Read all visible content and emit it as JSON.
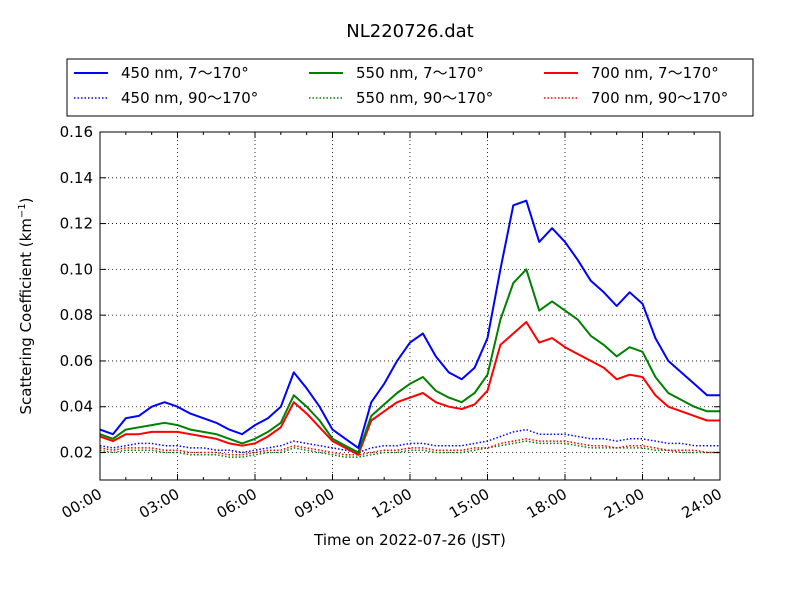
{
  "chart_data": {
    "type": "line",
    "title": "NL220726.dat",
    "xlabel": "Time on 2022-07-26 (JST)",
    "ylabel_main": "Scattering Coefficient (km",
    "ylabel_exp": "−1",
    "ylabel_close": ")",
    "xlim_hours": [
      0,
      24
    ],
    "ylim": [
      0.008,
      0.16
    ],
    "grid": true,
    "legend_placement": "top",
    "x_ticks": [
      {
        "hour": 0,
        "label": "00:00"
      },
      {
        "hour": 3,
        "label": "03:00"
      },
      {
        "hour": 6,
        "label": "06:00"
      },
      {
        "hour": 9,
        "label": "09:00"
      },
      {
        "hour": 12,
        "label": "12:00"
      },
      {
        "hour": 15,
        "label": "15:00"
      },
      {
        "hour": 18,
        "label": "18:00"
      },
      {
        "hour": 21,
        "label": "21:00"
      },
      {
        "hour": 24,
        "label": "24:00"
      }
    ],
    "y_ticks": [
      {
        "value": 0.02,
        "label": "0.02"
      },
      {
        "value": 0.04,
        "label": "0.04"
      },
      {
        "value": 0.06,
        "label": "0.06"
      },
      {
        "value": 0.08,
        "label": "0.08"
      },
      {
        "value": 0.1,
        "label": "0.10"
      },
      {
        "value": 0.12,
        "label": "0.12"
      },
      {
        "value": 0.14,
        "label": "0.14"
      },
      {
        "value": 0.16,
        "label": "0.16"
      }
    ],
    "x_hours": [
      0,
      0.5,
      1,
      1.5,
      2,
      2.5,
      3,
      3.5,
      4,
      4.5,
      5,
      5.5,
      6,
      6.5,
      7,
      7.5,
      8,
      8.5,
      9,
      9.5,
      10,
      10.5,
      11,
      11.5,
      12,
      12.5,
      13,
      13.5,
      14,
      14.5,
      15,
      15.5,
      16,
      16.5,
      17,
      17.5,
      18,
      18.5,
      19,
      19.5,
      20,
      20.5,
      21,
      21.5,
      22,
      22.5,
      23,
      23.5,
      24
    ],
    "series": [
      {
        "name": "450 nm, 7～170°",
        "color": "#0000ff",
        "style": "solid",
        "values": [
          0.03,
          0.028,
          0.035,
          0.036,
          0.04,
          0.042,
          0.04,
          0.037,
          0.035,
          0.033,
          0.03,
          0.028,
          0.032,
          0.035,
          0.04,
          0.055,
          0.048,
          0.04,
          0.03,
          0.026,
          0.022,
          0.042,
          0.05,
          0.06,
          0.068,
          0.072,
          0.062,
          0.055,
          0.052,
          0.057,
          0.07,
          0.1,
          0.128,
          0.13,
          0.112,
          0.118,
          0.112,
          0.104,
          0.095,
          0.09,
          0.084,
          0.09,
          0.085,
          0.07,
          0.06,
          0.055,
          0.05,
          0.045,
          0.045
        ]
      },
      {
        "name": "450 nm, 90～170°",
        "color": "#0000ff",
        "style": "dotted",
        "values": [
          0.023,
          0.022,
          0.023,
          0.024,
          0.024,
          0.023,
          0.023,
          0.022,
          0.022,
          0.021,
          0.021,
          0.02,
          0.021,
          0.022,
          0.023,
          0.025,
          0.024,
          0.023,
          0.022,
          0.021,
          0.02,
          0.022,
          0.023,
          0.023,
          0.024,
          0.024,
          0.023,
          0.023,
          0.023,
          0.024,
          0.025,
          0.027,
          0.029,
          0.03,
          0.028,
          0.028,
          0.028,
          0.027,
          0.026,
          0.026,
          0.025,
          0.026,
          0.026,
          0.025,
          0.024,
          0.024,
          0.023,
          0.023,
          0.023
        ]
      },
      {
        "name": "550 nm, 7～170°",
        "color": "#008000",
        "style": "solid",
        "values": [
          0.028,
          0.026,
          0.03,
          0.031,
          0.032,
          0.033,
          0.032,
          0.03,
          0.029,
          0.028,
          0.026,
          0.024,
          0.026,
          0.029,
          0.033,
          0.045,
          0.04,
          0.034,
          0.026,
          0.023,
          0.02,
          0.036,
          0.041,
          0.046,
          0.05,
          0.053,
          0.047,
          0.044,
          0.042,
          0.046,
          0.054,
          0.078,
          0.094,
          0.1,
          0.082,
          0.086,
          0.082,
          0.078,
          0.071,
          0.067,
          0.062,
          0.066,
          0.064,
          0.053,
          0.046,
          0.043,
          0.04,
          0.038,
          0.038
        ]
      },
      {
        "name": "550 nm, 90～170°",
        "color": "#008000",
        "style": "dotted",
        "values": [
          0.021,
          0.02,
          0.021,
          0.021,
          0.021,
          0.02,
          0.02,
          0.019,
          0.019,
          0.019,
          0.018,
          0.018,
          0.019,
          0.02,
          0.02,
          0.022,
          0.021,
          0.02,
          0.019,
          0.018,
          0.018,
          0.019,
          0.02,
          0.02,
          0.021,
          0.021,
          0.02,
          0.02,
          0.02,
          0.021,
          0.022,
          0.023,
          0.024,
          0.025,
          0.024,
          0.024,
          0.024,
          0.023,
          0.022,
          0.022,
          0.022,
          0.022,
          0.022,
          0.021,
          0.021,
          0.02,
          0.02,
          0.02,
          0.02
        ]
      },
      {
        "name": "700 nm, 7～170°",
        "color": "#ff0000",
        "style": "solid",
        "values": [
          0.027,
          0.025,
          0.028,
          0.028,
          0.029,
          0.029,
          0.029,
          0.028,
          0.027,
          0.026,
          0.024,
          0.023,
          0.024,
          0.027,
          0.031,
          0.042,
          0.037,
          0.031,
          0.025,
          0.022,
          0.019,
          0.034,
          0.038,
          0.042,
          0.044,
          0.046,
          0.042,
          0.04,
          0.039,
          0.041,
          0.047,
          0.067,
          0.072,
          0.077,
          0.068,
          0.07,
          0.066,
          0.063,
          0.06,
          0.057,
          0.052,
          0.054,
          0.053,
          0.045,
          0.04,
          0.038,
          0.036,
          0.034,
          0.034
        ]
      },
      {
        "name": "700 nm, 90～170°",
        "color": "#ff0000",
        "style": "dotted",
        "values": [
          0.022,
          0.021,
          0.022,
          0.022,
          0.022,
          0.021,
          0.021,
          0.02,
          0.02,
          0.02,
          0.019,
          0.019,
          0.02,
          0.021,
          0.021,
          0.023,
          0.022,
          0.021,
          0.02,
          0.019,
          0.019,
          0.02,
          0.021,
          0.021,
          0.022,
          0.022,
          0.021,
          0.021,
          0.021,
          0.022,
          0.022,
          0.024,
          0.025,
          0.026,
          0.025,
          0.025,
          0.025,
          0.024,
          0.023,
          0.023,
          0.022,
          0.023,
          0.023,
          0.022,
          0.021,
          0.021,
          0.021,
          0.02,
          0.02
        ]
      }
    ]
  }
}
